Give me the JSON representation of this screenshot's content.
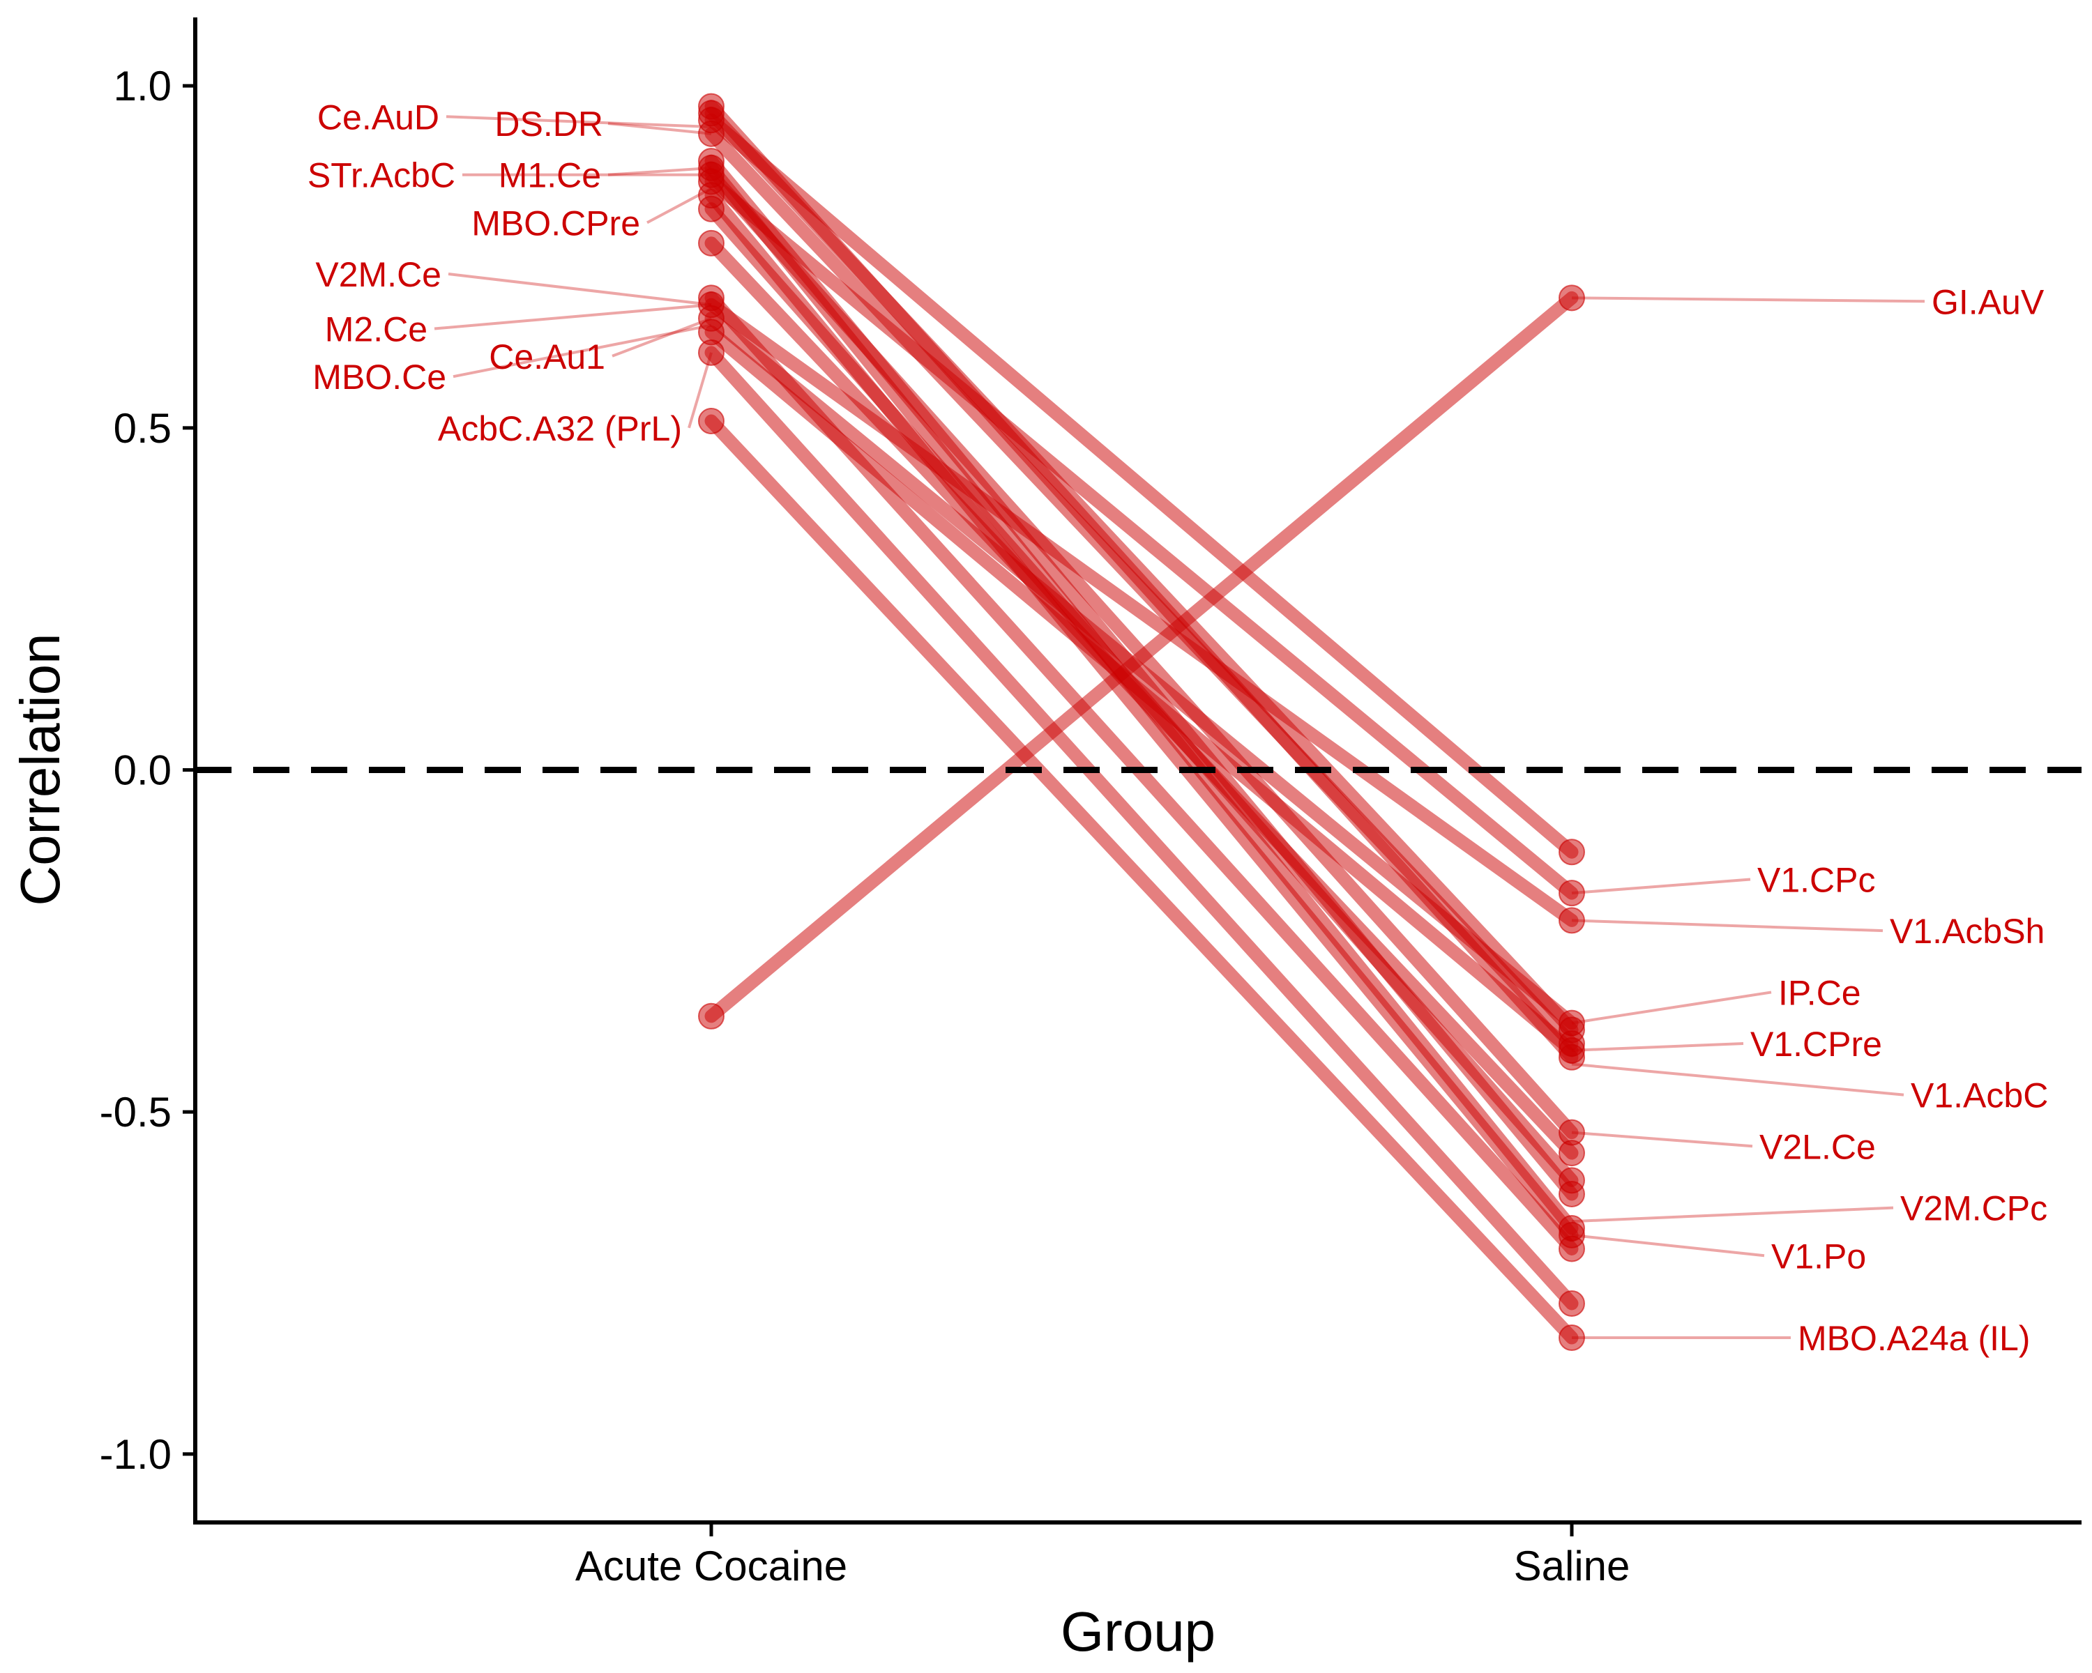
{
  "chart_data": {
    "type": "line",
    "xlabel": "Group",
    "ylabel": "Correlation",
    "categories": [
      "Acute Cocaine",
      "Saline"
    ],
    "ylim": [
      -1.1,
      1.1
    ],
    "yticks": [
      -1.0,
      -0.5,
      0.0,
      0.5,
      1.0
    ],
    "ytick_labels": [
      "-1.0",
      "-0.5",
      "0.0",
      "0.5",
      "1.0"
    ],
    "reference_line": {
      "y": 0,
      "style": "dashed"
    },
    "grid": false,
    "legend": "none",
    "colors": {
      "series": "#cc0000",
      "label": "#cc0000",
      "axis": "#000000"
    },
    "series": [
      {
        "name": "Ce.AuD",
        "values": [
          0.97,
          -0.42
        ]
      },
      {
        "name": "DS.DR",
        "values": [
          0.96,
          -0.38
        ]
      },
      {
        "name": "",
        "values": [
          0.95,
          -0.12
        ]
      },
      {
        "name": "",
        "values": [
          0.93,
          -0.4
        ]
      },
      {
        "name": "STr.AcbC",
        "values": [
          0.89,
          -0.62
        ]
      },
      {
        "name": "M1.Ce",
        "values": [
          0.88,
          -0.67
        ]
      },
      {
        "name": "",
        "values": [
          0.87,
          -0.53
        ]
      },
      {
        "name": "",
        "values": [
          0.86,
          -0.18
        ]
      },
      {
        "name": "MBO.CPre",
        "values": [
          0.84,
          -0.68
        ]
      },
      {
        "name": "",
        "values": [
          0.82,
          -0.6
        ]
      },
      {
        "name": "V2M.Ce",
        "values": [
          0.77,
          -0.56
        ]
      },
      {
        "name": "M2.Ce",
        "values": [
          0.69,
          -0.7
        ]
      },
      {
        "name": "",
        "values": [
          0.68,
          -0.22
        ]
      },
      {
        "name": "Ce.Au1",
        "values": [
          0.66,
          -0.37
        ]
      },
      {
        "name": "MBO.Ce",
        "values": [
          0.64,
          -0.41
        ]
      },
      {
        "name": "",
        "values": [
          0.61,
          -0.78
        ]
      },
      {
        "name": "AcbC.A32 (PrL)",
        "values": [
          0.51,
          -0.83
        ]
      },
      {
        "name": "GI.AuV",
        "values": [
          -0.36,
          0.69
        ]
      }
    ],
    "annotations": [
      {
        "text": "Ce.AuD",
        "group": "Acute Cocaine",
        "point_y": 0.94,
        "label_y": 0.955
      },
      {
        "text": "DS.DR",
        "group": "Acute Cocaine",
        "point_y": 0.93,
        "label_y": 0.945
      },
      {
        "text": "STr.AcbC",
        "group": "Acute Cocaine",
        "point_y": 0.87,
        "label_y": 0.87
      },
      {
        "text": "M1.Ce",
        "group": "Acute Cocaine",
        "point_y": 0.88,
        "label_y": 0.87
      },
      {
        "text": "MBO.CPre",
        "group": "Acute Cocaine",
        "point_y": 0.85,
        "label_y": 0.8
      },
      {
        "text": "V2M.Ce",
        "group": "Acute Cocaine",
        "point_y": 0.68,
        "label_y": 0.725
      },
      {
        "text": "M2.Ce",
        "group": "Acute Cocaine",
        "point_y": 0.68,
        "label_y": 0.645
      },
      {
        "text": "Ce.Au1",
        "group": "Acute Cocaine",
        "point_y": 0.66,
        "label_y": 0.605
      },
      {
        "text": "MBO.Ce",
        "group": "Acute Cocaine",
        "point_y": 0.65,
        "label_y": 0.575
      },
      {
        "text": "AcbC.A32 (PrL)",
        "group": "Acute Cocaine",
        "point_y": 0.61,
        "label_y": 0.5
      },
      {
        "text": "GI.AuV",
        "group": "Saline",
        "point_y": 0.69,
        "label_y": 0.685
      },
      {
        "text": "V1.CPc",
        "group": "Saline",
        "point_y": -0.18,
        "label_y": -0.16
      },
      {
        "text": "V1.AcbSh",
        "group": "Saline",
        "point_y": -0.22,
        "label_y": -0.235
      },
      {
        "text": "IP.Ce",
        "group": "Saline",
        "point_y": -0.37,
        "label_y": -0.325
      },
      {
        "text": "V1.CPre",
        "group": "Saline",
        "point_y": -0.41,
        "label_y": -0.4
      },
      {
        "text": "V1.AcbC",
        "group": "Saline",
        "point_y": -0.43,
        "label_y": -0.475
      },
      {
        "text": "V2L.Ce",
        "group": "Saline",
        "point_y": -0.53,
        "label_y": -0.55
      },
      {
        "text": "V2M.CPc",
        "group": "Saline",
        "point_y": -0.66,
        "label_y": -0.64
      },
      {
        "text": "V1.Po",
        "group": "Saline",
        "point_y": -0.68,
        "label_y": -0.71
      },
      {
        "text": "MBO.A24a (IL)",
        "group": "Saline",
        "point_y": -0.83,
        "label_y": -0.83
      }
    ]
  }
}
